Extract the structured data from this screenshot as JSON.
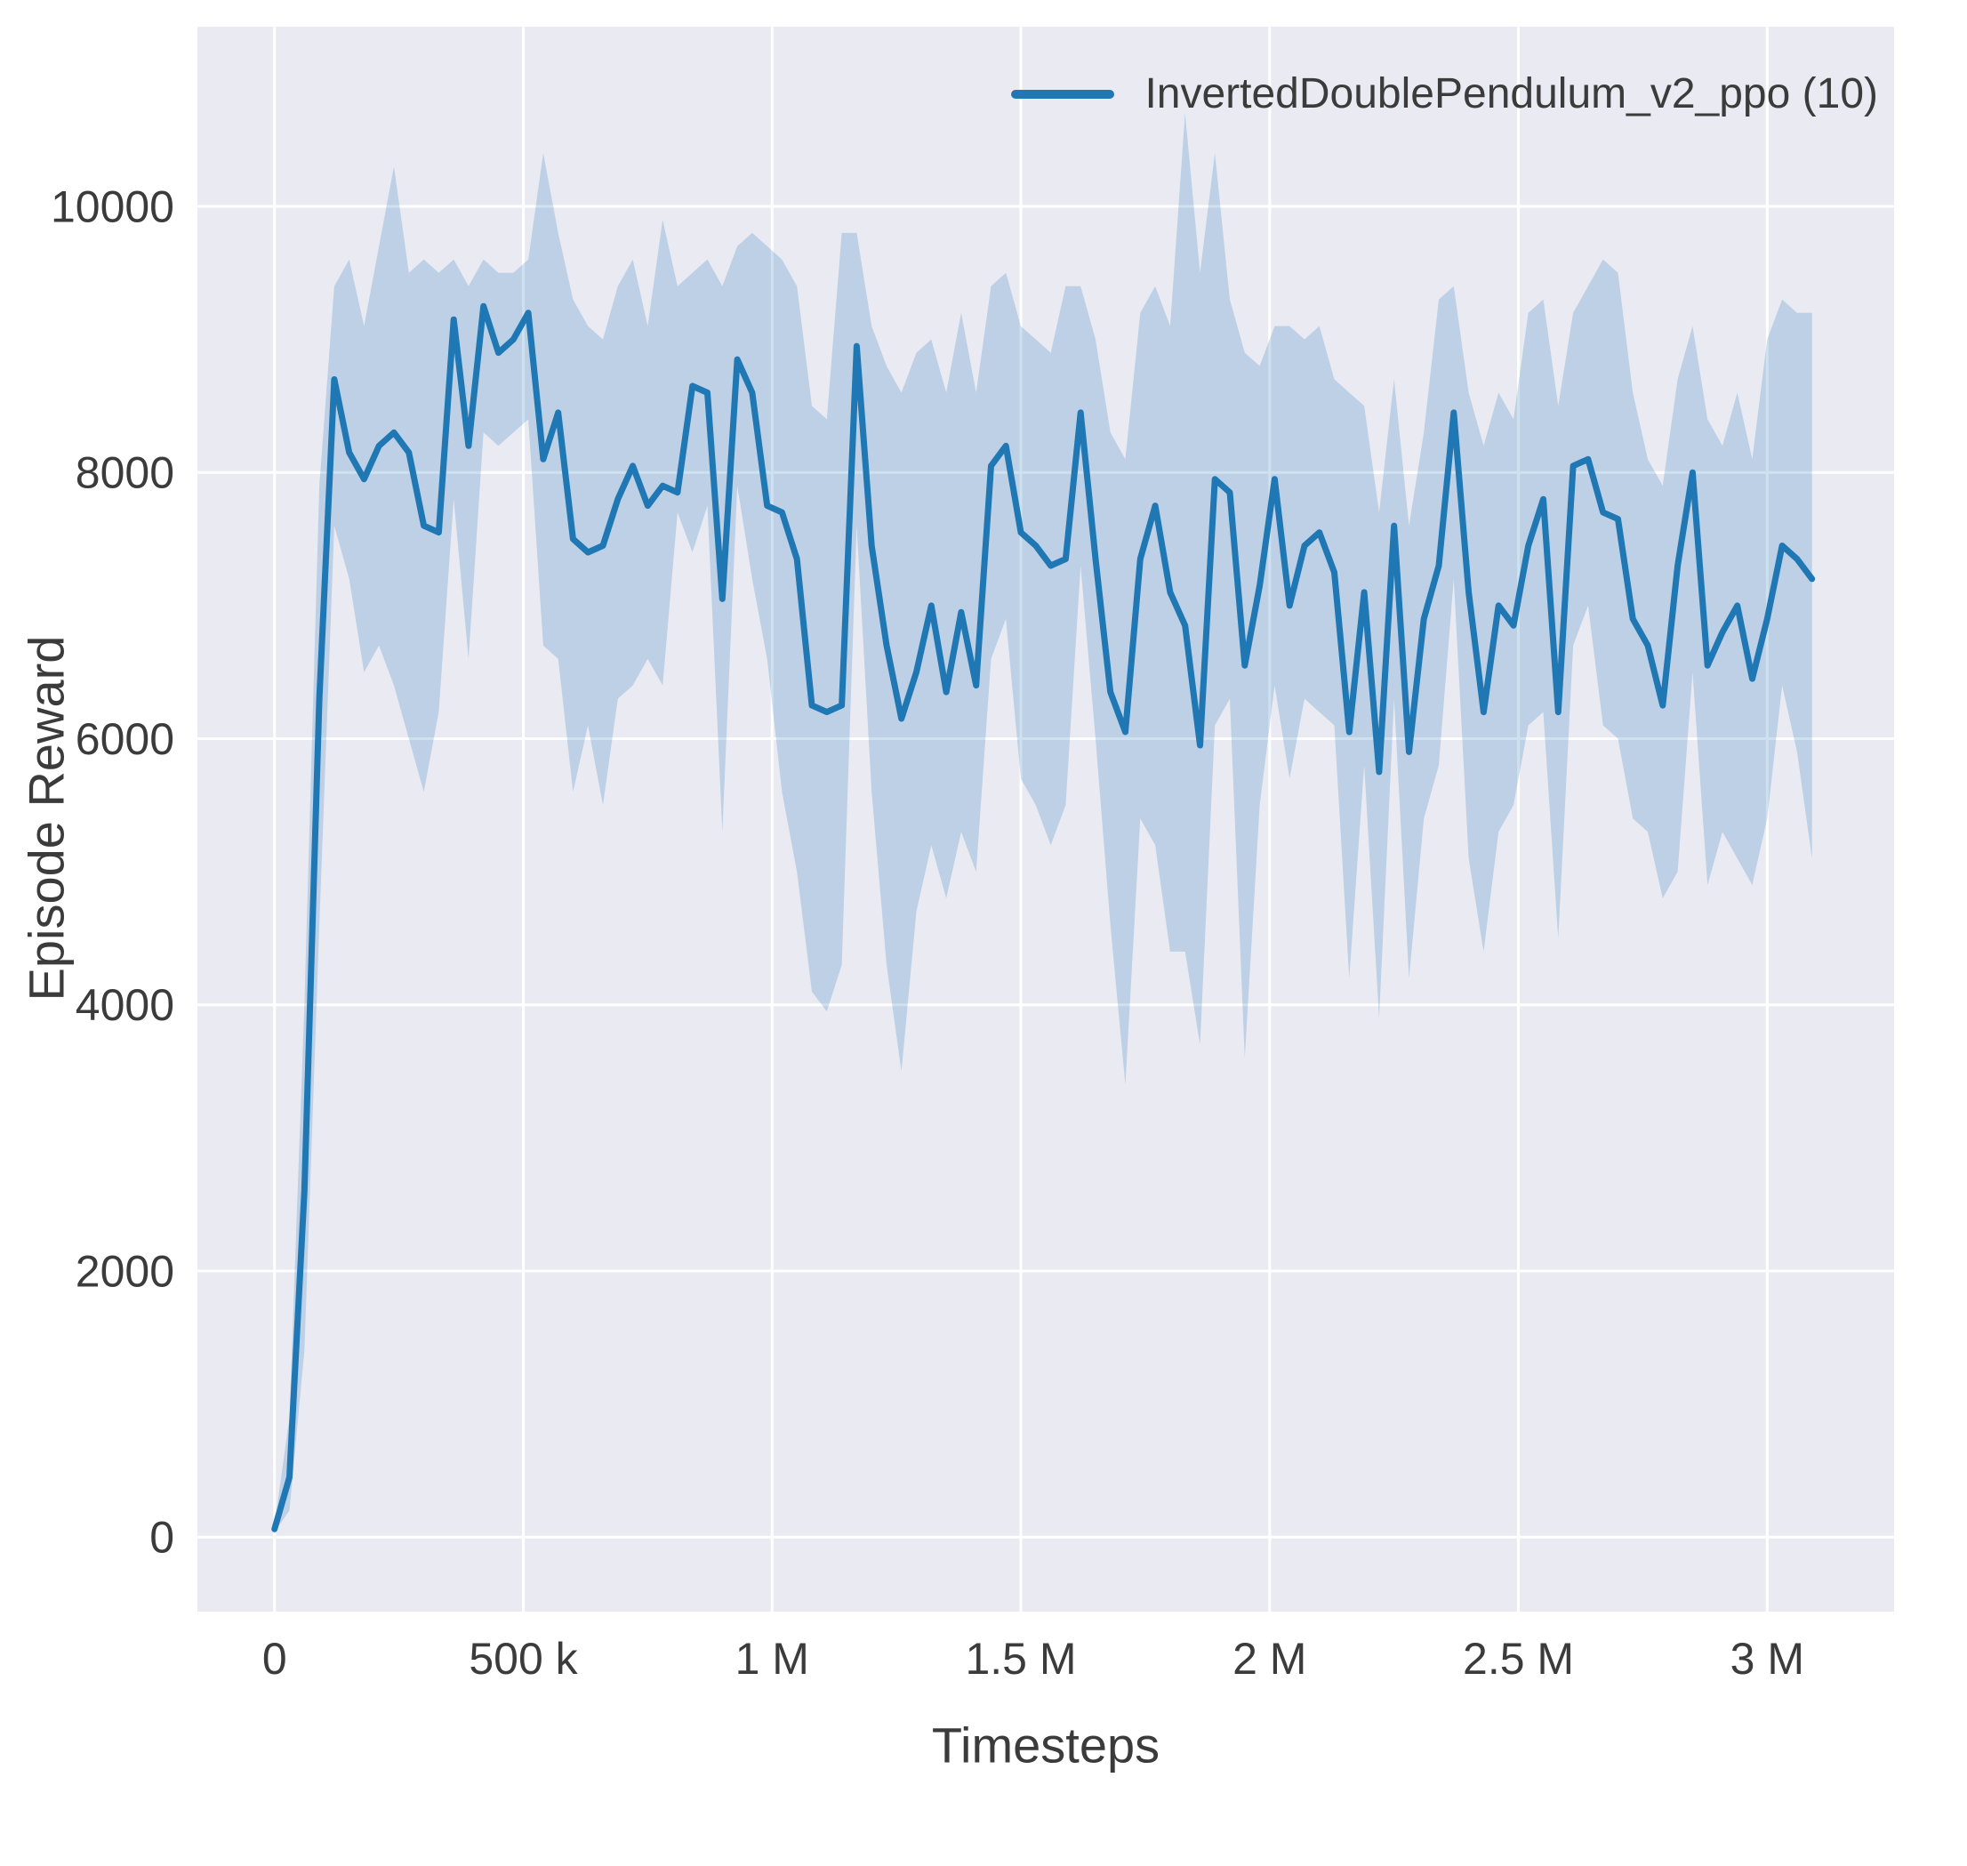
{
  "figure": {
    "background": "#ffffff",
    "plot_background": "#eaeaf2",
    "grid_color": "#ffffff",
    "text_color": "#3b3b3b"
  },
  "chart_data": {
    "type": "line",
    "title": "",
    "xlabel": "Timesteps",
    "ylabel": "Episode Reward",
    "grid": true,
    "legend_position": "upper right",
    "xlim": [
      -155000,
      3255000
    ],
    "ylim": [
      -560,
      11350
    ],
    "x_ticks": [
      {
        "value": 0,
        "label": "0"
      },
      {
        "value": 500000,
        "label": "500 k"
      },
      {
        "value": 1000000,
        "label": "1 M"
      },
      {
        "value": 1500000,
        "label": "1.5 M"
      },
      {
        "value": 2000000,
        "label": "2 M"
      },
      {
        "value": 2500000,
        "label": "2.5 M"
      },
      {
        "value": 3000000,
        "label": "3 M"
      }
    ],
    "y_ticks": [
      {
        "value": 0,
        "label": "0"
      },
      {
        "value": 2000,
        "label": "2000"
      },
      {
        "value": 4000,
        "label": "4000"
      },
      {
        "value": 6000,
        "label": "6000"
      },
      {
        "value": 8000,
        "label": "8000"
      },
      {
        "value": 10000,
        "label": "10000"
      }
    ],
    "series": [
      {
        "name": "InvertedDoublePendulum_v2_ppo (10)",
        "color": "#1f77b4",
        "band_color": "#1f77b4",
        "band_opacity": 0.22,
        "x": [
          0,
          30000,
          60000,
          90000,
          120000,
          150000,
          180000,
          210000,
          240000,
          270000,
          300000,
          330000,
          360000,
          390000,
          420000,
          450000,
          480000,
          510000,
          540000,
          570000,
          600000,
          630000,
          660000,
          690000,
          720000,
          750000,
          780000,
          810000,
          840000,
          870000,
          900000,
          930000,
          960000,
          990000,
          1020000,
          1050000,
          1080000,
          1110000,
          1140000,
          1170000,
          1200000,
          1230000,
          1260000,
          1290000,
          1320000,
          1350000,
          1380000,
          1410000,
          1440000,
          1470000,
          1500000,
          1530000,
          1560000,
          1590000,
          1620000,
          1650000,
          1680000,
          1710000,
          1740000,
          1770000,
          1800000,
          1830000,
          1860000,
          1890000,
          1920000,
          1950000,
          1980000,
          2010000,
          2040000,
          2070000,
          2100000,
          2130000,
          2160000,
          2190000,
          2220000,
          2250000,
          2280000,
          2310000,
          2340000,
          2370000,
          2400000,
          2430000,
          2460000,
          2490000,
          2520000,
          2550000,
          2580000,
          2610000,
          2640000,
          2670000,
          2700000,
          2730000,
          2760000,
          2790000,
          2820000,
          2850000,
          2880000,
          2910000,
          2940000,
          2970000,
          3000000,
          3030000,
          3060000,
          3090000
        ],
        "mean": [
          60,
          450,
          2600,
          6300,
          8700,
          8150,
          7950,
          8200,
          8300,
          8150,
          7600,
          7550,
          9150,
          8200,
          9250,
          8900,
          9000,
          9200,
          8100,
          8450,
          7500,
          7400,
          7450,
          7800,
          8050,
          7750,
          7900,
          7850,
          8650,
          8600,
          7050,
          8850,
          8600,
          7750,
          7700,
          7350,
          6250,
          6200,
          6250,
          8950,
          7450,
          6700,
          6150,
          6500,
          7000,
          6350,
          6950,
          6400,
          8050,
          8200,
          7550,
          7450,
          7300,
          7350,
          8450,
          7350,
          6350,
          6050,
          7350,
          7750,
          7100,
          6850,
          5950,
          7950,
          7850,
          6550,
          7150,
          7950,
          7000,
          7450,
          7550,
          7250,
          6050,
          7100,
          5750,
          7600,
          5900,
          6900,
          7300,
          8450,
          7100,
          6200,
          7000,
          6850,
          7450,
          7800,
          6200,
          8050,
          8100,
          7700,
          7650,
          6900,
          6700,
          6250,
          7300,
          8000,
          6550,
          6800,
          7000,
          6450,
          6900,
          7450,
          7350,
          7200
        ],
        "upper": [
          90,
          900,
          4000,
          7900,
          9400,
          9600,
          9100,
          9700,
          10300,
          9500,
          9600,
          9500,
          9600,
          9400,
          9600,
          9500,
          9500,
          9600,
          10400,
          9800,
          9300,
          9100,
          9000,
          9400,
          9600,
          9100,
          9900,
          9400,
          9500,
          9600,
          9400,
          9700,
          9800,
          9700,
          9600,
          9400,
          8500,
          8400,
          9800,
          9800,
          9100,
          8800,
          8600,
          8900,
          9000,
          8600,
          9200,
          8600,
          9400,
          9500,
          9100,
          9000,
          8900,
          9400,
          9400,
          9000,
          8300,
          8100,
          9200,
          9400,
          9100,
          10700,
          9500,
          10400,
          9300,
          8900,
          8800,
          9100,
          9100,
          9000,
          9100,
          8700,
          8600,
          8500,
          7700,
          8700,
          7600,
          8300,
          9300,
          9400,
          8600,
          8200,
          8600,
          8400,
          9200,
          9300,
          8500,
          9200,
          9400,
          9600,
          9500,
          8600,
          8100,
          7900,
          8700,
          9100,
          8400,
          8200,
          8600,
          8100,
          9000,
          9300,
          9200,
          9200
        ],
        "lower": [
          40,
          200,
          1400,
          4600,
          7600,
          7200,
          6500,
          6700,
          6400,
          6000,
          5600,
          6200,
          7800,
          6600,
          8300,
          8200,
          8300,
          8400,
          6700,
          6600,
          5600,
          6100,
          5500,
          6300,
          6400,
          6600,
          6400,
          7700,
          7400,
          7750,
          5300,
          7900,
          7200,
          6600,
          5600,
          5000,
          4100,
          3950,
          4300,
          7600,
          5600,
          4300,
          3500,
          4700,
          5200,
          4800,
          5300,
          5000,
          6600,
          6900,
          5700,
          5500,
          5200,
          5500,
          7300,
          6000,
          4600,
          3400,
          5400,
          5200,
          4400,
          4400,
          3700,
          6100,
          6300,
          3600,
          5500,
          6400,
          5700,
          6300,
          6200,
          6100,
          4200,
          5800,
          3900,
          6300,
          4200,
          5400,
          5800,
          7200,
          5100,
          4400,
          5300,
          5500,
          6100,
          6200,
          4500,
          6700,
          7000,
          6100,
          6000,
          5400,
          5300,
          4800,
          5000,
          6500,
          4900,
          5300,
          5100,
          4900,
          5400,
          6400,
          5900,
          5100
        ]
      }
    ]
  }
}
